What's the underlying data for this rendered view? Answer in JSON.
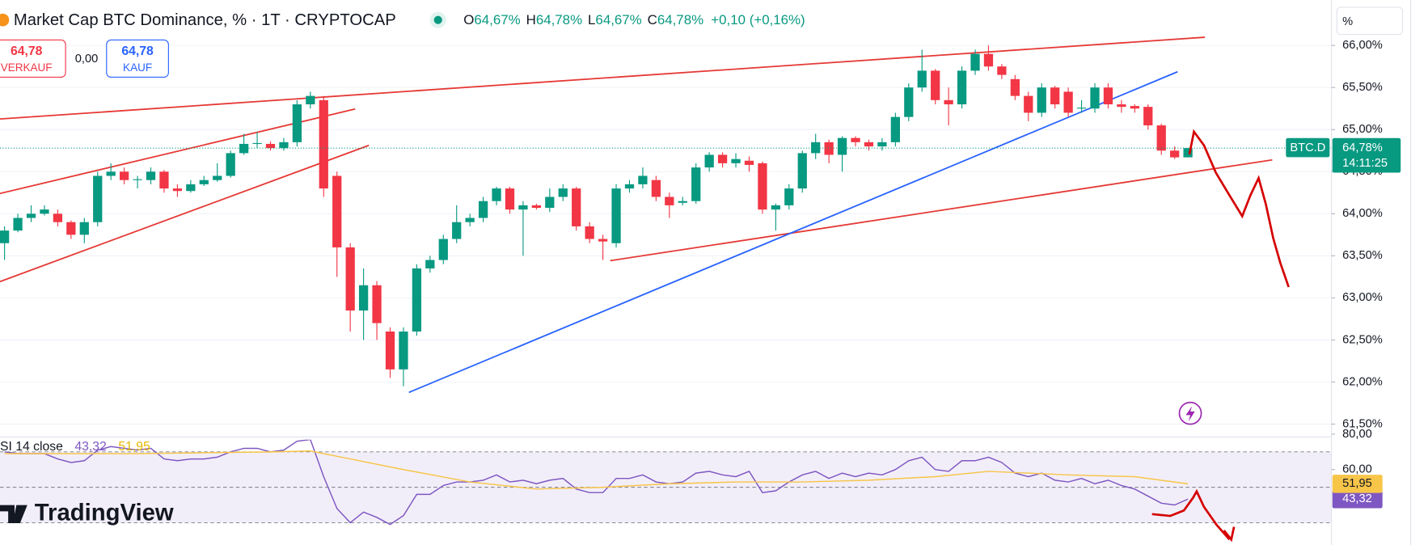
{
  "header": {
    "title": "Market Cap BTC Dominance, % · 1T · CRYPTOCAP",
    "ohlc_legend": [
      {
        "key": "O",
        "value": "64,67%"
      },
      {
        "key": "H",
        "value": "64,78%"
      },
      {
        "key": "L",
        "value": "64,67%"
      },
      {
        "key": "C",
        "value": "64,78%"
      }
    ],
    "change": "+0,10 (+0,16%)"
  },
  "trade": {
    "sell": {
      "price": "64,78",
      "label": "VERKAUF"
    },
    "spread": "0,00",
    "buy": {
      "price": "64,78",
      "label": "KAUF"
    }
  },
  "logo": "TradingView",
  "chart_data": [
    {
      "type": "candlestick",
      "unit_label": "%",
      "up_color": "#089981",
      "down_color": "#f23645",
      "grid": true,
      "ylim": [
        61.38,
        66.54
      ],
      "yticks": [
        {
          "value": 61.5,
          "label": "61,50%"
        },
        {
          "value": 62,
          "label": "62,00%"
        },
        {
          "value": 62.5,
          "label": "62,50%"
        },
        {
          "value": 63,
          "label": "63,00%"
        },
        {
          "value": 63.5,
          "label": "63,50%"
        },
        {
          "value": 64,
          "label": "64,00%"
        },
        {
          "value": 64.5,
          "label": "64,50%"
        },
        {
          "value": 65,
          "label": "65,00%"
        },
        {
          "value": 65.5,
          "label": "65,50%"
        },
        {
          "value": 66,
          "label": "66,00%"
        }
      ],
      "open": [
        63.65,
        63.8,
        63.95,
        64.0,
        64.0,
        63.9,
        63.75,
        63.9,
        64.45,
        64.5,
        64.4,
        64.4,
        64.5,
        64.3,
        64.27,
        64.35,
        64.4,
        64.45,
        64.72,
        64.83,
        64.83,
        64.78,
        64.85,
        65.3,
        65.35,
        64.45,
        63.6,
        62.85,
        63.15,
        62.6,
        62.15,
        62.6,
        63.35,
        63.45,
        63.7,
        63.9,
        63.95,
        64.15,
        64.3,
        64.05,
        64.1,
        64.07,
        64.2,
        64.3,
        63.85,
        63.7,
        63.65,
        64.3,
        64.35,
        64.4,
        64.2,
        64.13,
        64.15,
        64.55,
        64.7,
        64.6,
        64.63,
        64.6,
        64.05,
        64.1,
        64.3,
        64.72,
        64.85,
        64.7,
        64.9,
        64.85,
        64.8,
        64.85,
        65.15,
        65.5,
        65.7,
        65.35,
        65.3,
        65.7,
        65.9,
        65.75,
        65.6,
        65.4,
        65.2,
        65.5,
        65.45,
        65.25,
        65.25,
        65.5,
        65.3,
        65.28,
        65.27,
        65.05,
        64.75,
        64.67
      ],
      "high": [
        63.85,
        64.0,
        64.1,
        64.1,
        64.05,
        63.92,
        63.95,
        64.5,
        64.6,
        64.55,
        64.45,
        64.55,
        64.52,
        64.35,
        64.4,
        64.45,
        64.6,
        64.75,
        64.95,
        64.97,
        64.86,
        64.9,
        65.35,
        65.45,
        65.4,
        64.5,
        63.65,
        63.35,
        63.2,
        62.65,
        62.65,
        63.4,
        63.5,
        63.75,
        64.1,
        64.0,
        64.2,
        64.32,
        64.32,
        64.15,
        64.12,
        64.3,
        64.35,
        64.32,
        63.9,
        63.75,
        64.35,
        64.4,
        64.55,
        64.45,
        64.25,
        64.2,
        64.6,
        64.73,
        64.73,
        64.72,
        64.68,
        64.62,
        64.12,
        64.35,
        64.75,
        64.95,
        64.88,
        64.92,
        64.92,
        64.88,
        64.9,
        65.2,
        65.55,
        65.95,
        65.72,
        65.5,
        65.75,
        65.95,
        66.0,
        65.78,
        65.65,
        65.45,
        65.55,
        65.52,
        65.5,
        65.35,
        65.55,
        65.55,
        65.35,
        65.3,
        65.3,
        65.07,
        64.8,
        64.78
      ],
      "low": [
        63.45,
        63.78,
        63.9,
        63.98,
        63.85,
        63.7,
        63.65,
        63.85,
        64.4,
        64.35,
        64.3,
        64.35,
        64.25,
        64.2,
        64.25,
        64.33,
        64.38,
        64.43,
        64.7,
        64.78,
        64.75,
        64.75,
        64.8,
        65.25,
        64.2,
        63.25,
        62.6,
        62.5,
        62.5,
        62.05,
        61.95,
        62.55,
        63.3,
        63.4,
        63.65,
        63.85,
        63.9,
        64.1,
        64.0,
        63.5,
        64.05,
        64.02,
        64.15,
        63.8,
        63.65,
        63.45,
        63.6,
        64.25,
        64.3,
        64.15,
        63.95,
        64.1,
        64.12,
        64.5,
        64.55,
        64.55,
        64.5,
        64.0,
        63.8,
        64.05,
        64.25,
        64.65,
        64.6,
        64.5,
        64.8,
        64.75,
        64.75,
        64.8,
        65.1,
        65.45,
        65.3,
        65.05,
        65.25,
        65.65,
        65.7,
        65.6,
        65.35,
        65.1,
        65.15,
        65.25,
        65.15,
        65.2,
        65.2,
        65.25,
        65.2,
        65.2,
        65.0,
        64.7,
        64.65,
        64.67
      ],
      "close": [
        63.8,
        63.95,
        64.0,
        64.05,
        63.9,
        63.75,
        63.9,
        64.45,
        64.5,
        64.4,
        64.41,
        64.5,
        64.3,
        64.27,
        64.35,
        64.4,
        64.45,
        64.72,
        64.83,
        64.84,
        64.78,
        64.85,
        65.3,
        65.4,
        64.3,
        63.6,
        62.85,
        63.15,
        62.7,
        62.15,
        62.6,
        63.35,
        63.45,
        63.7,
        63.9,
        63.95,
        64.15,
        64.3,
        64.05,
        64.1,
        64.07,
        64.2,
        64.3,
        63.85,
        63.7,
        63.67,
        64.3,
        64.35,
        64.45,
        64.2,
        64.1,
        64.15,
        64.55,
        64.7,
        64.6,
        64.65,
        64.58,
        64.05,
        64.1,
        64.3,
        64.72,
        64.85,
        64.7,
        64.9,
        64.85,
        64.8,
        64.85,
        65.15,
        65.5,
        65.7,
        65.35,
        65.3,
        65.7,
        65.9,
        65.75,
        65.65,
        65.4,
        65.2,
        65.5,
        65.3,
        65.2,
        65.26,
        65.5,
        65.3,
        65.27,
        65.25,
        65.05,
        64.75,
        64.67,
        64.78
      ],
      "last_price": {
        "name": "BTC.D",
        "value": 64.78,
        "label": "64,78%",
        "countdown": "14:11:25"
      }
    },
    {
      "type": "line",
      "title": "SI 14 close",
      "ylim": [
        17.4,
        84.1
      ],
      "yticks": [
        {
          "value": 80,
          "label": "80,00"
        },
        {
          "value": 60,
          "label": "60,00"
        }
      ],
      "levels": [
        70,
        50,
        30
      ],
      "band_color": "#7e57c2",
      "series": [
        {
          "color": "#7e57c2",
          "value_label": "43,32",
          "values": [
            70,
            69,
            69,
            69,
            66,
            64,
            65,
            71,
            73,
            72,
            71,
            72,
            66,
            65,
            66,
            66,
            67,
            70,
            72,
            72,
            70,
            71,
            76,
            77,
            56,
            38,
            30,
            36,
            33,
            29,
            34,
            46,
            46,
            51,
            53,
            53,
            54,
            57,
            53,
            54,
            52,
            54,
            55,
            49,
            47,
            47,
            55,
            55,
            57,
            53,
            52,
            53,
            58,
            59,
            57,
            56,
            59,
            47,
            48,
            53,
            57,
            59,
            55,
            58,
            56,
            58,
            57,
            60,
            65,
            67,
            60,
            59,
            65,
            65,
            67,
            64,
            58,
            56,
            58,
            54,
            53,
            55,
            52,
            54,
            51,
            49,
            45,
            41,
            40,
            43.32
          ]
        },
        {
          "color": "#f7c548",
          "value_label": "51,95",
          "x": [
            0,
            10,
            20,
            23,
            26,
            30,
            35,
            40,
            45,
            50,
            55,
            60,
            65,
            70,
            74,
            80,
            85,
            89
          ],
          "values": [
            69,
            69,
            70,
            70.5,
            66,
            60,
            53,
            49,
            50,
            52,
            53,
            53,
            54,
            56,
            59,
            57,
            56,
            51.95
          ]
        }
      ]
    }
  ]
}
